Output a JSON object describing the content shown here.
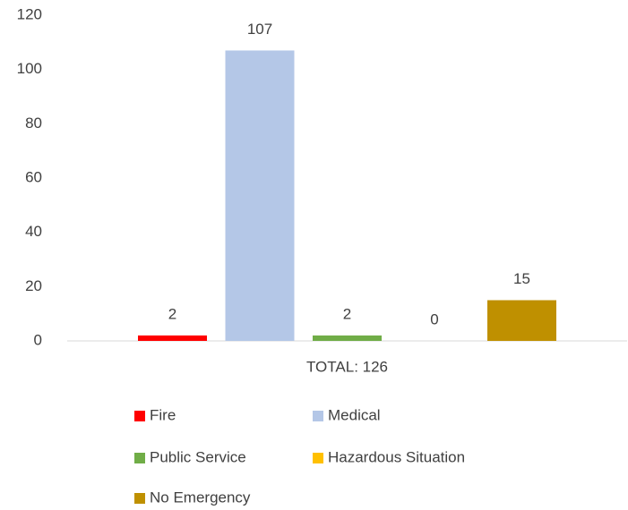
{
  "chart_data": {
    "type": "bar",
    "categories": [
      "TOTAL: 126"
    ],
    "series": [
      {
        "name": "Fire",
        "color": "#ff0000",
        "values": [
          2
        ]
      },
      {
        "name": "Medical",
        "color": "#b4c7e7",
        "values": [
          107
        ]
      },
      {
        "name": "Public Service",
        "color": "#70ad47",
        "values": [
          2
        ]
      },
      {
        "name": "Hazardous Situation",
        "color": "#ffc000",
        "values": [
          0
        ]
      },
      {
        "name": "No Emergency",
        "color": "#bf9000",
        "values": [
          15
        ]
      }
    ],
    "ylim": [
      0,
      120
    ],
    "yticks": [
      0,
      20,
      40,
      60,
      80,
      100,
      120
    ],
    "grid": false,
    "legend": "bottom"
  }
}
